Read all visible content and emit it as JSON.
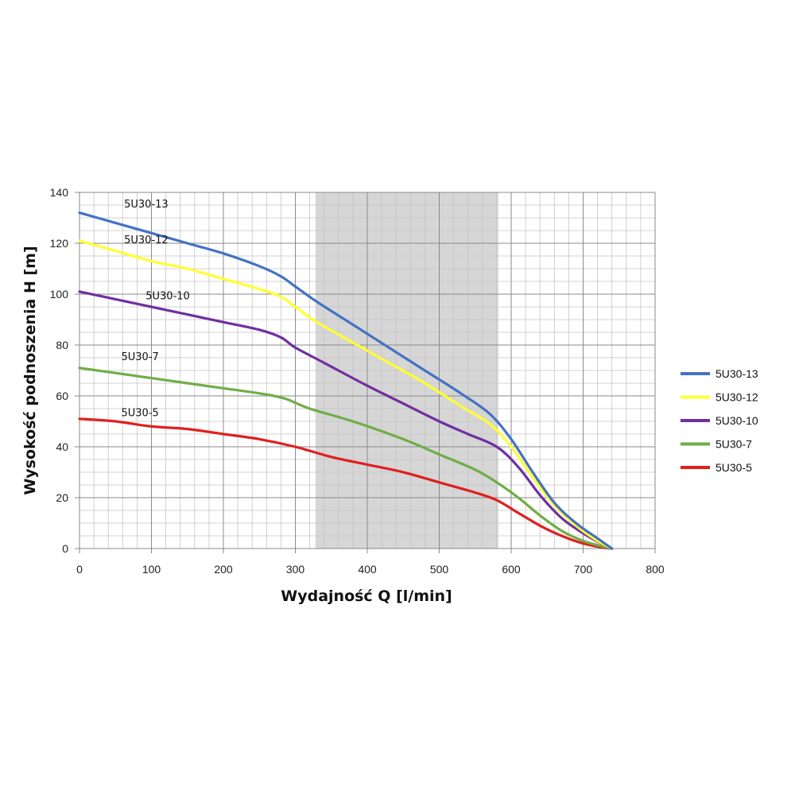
{
  "chart_data": {
    "type": "line",
    "xlabel": "Wydajność Q [l/min]",
    "ylabel": "Wysokość podnoszenia H [m]",
    "xlim": [
      0,
      800
    ],
    "ylim": [
      0,
      140
    ],
    "xticks": [
      0,
      100,
      200,
      300,
      400,
      500,
      600,
      700,
      800
    ],
    "yticks": [
      0,
      20,
      40,
      60,
      80,
      100,
      120,
      140
    ],
    "grid": true,
    "legend_position": "right",
    "highlight_band_x": [
      328,
      582
    ],
    "series": [
      {
        "name": "5U30-13",
        "color": "#4472C4",
        "x": [
          0,
          50,
          100,
          150,
          200,
          250,
          280,
          300,
          330,
          380,
          430,
          480,
          530,
          570,
          600,
          630,
          660,
          690,
          720,
          740
        ],
        "y": [
          132,
          128,
          124,
          120,
          116,
          111,
          107,
          103,
          97,
          88,
          79,
          70,
          61,
          53,
          43,
          30,
          18,
          10,
          4,
          0
        ]
      },
      {
        "name": "5U30-12",
        "color": "#FFFF33",
        "x": [
          0,
          50,
          100,
          150,
          200,
          250,
          280,
          300,
          330,
          380,
          430,
          480,
          530,
          570,
          600,
          630,
          660,
          690,
          720,
          740
        ],
        "y": [
          121,
          117,
          113,
          110,
          106,
          102,
          99,
          95,
          89,
          81,
          73,
          65,
          56,
          49,
          40,
          28,
          17,
          9,
          3,
          0
        ]
      },
      {
        "name": "5U30-10",
        "color": "#7030A0",
        "x": [
          0,
          50,
          100,
          150,
          200,
          250,
          280,
          300,
          340,
          400,
          450,
          500,
          540,
          580,
          610,
          640,
          670,
          700,
          725,
          740
        ],
        "y": [
          101,
          98,
          95,
          92,
          89,
          86,
          83,
          79,
          73,
          64,
          57,
          50,
          45,
          40,
          32,
          21,
          12,
          6,
          2,
          0
        ]
      },
      {
        "name": "5U30-7",
        "color": "#70AD47",
        "x": [
          0,
          50,
          100,
          150,
          200,
          250,
          285,
          320,
          380,
          450,
          500,
          550,
          580,
          610,
          640,
          670,
          700,
          725,
          740
        ],
        "y": [
          71,
          69,
          67,
          65,
          63,
          61,
          59,
          55,
          50,
          43,
          37,
          31,
          26,
          20,
          13,
          7,
          3,
          1,
          0
        ]
      },
      {
        "name": "5U30-5",
        "color": "#E02020",
        "x": [
          0,
          50,
          100,
          150,
          200,
          250,
          300,
          350,
          400,
          450,
          500,
          550,
          580,
          610,
          640,
          670,
          700,
          725,
          740
        ],
        "y": [
          51,
          50,
          48,
          47,
          45,
          43,
          40,
          36,
          33,
          30,
          26,
          22,
          19,
          14,
          9,
          5,
          2,
          0.5,
          0
        ]
      }
    ],
    "curve_labels": [
      {
        "text": "5U30-13",
        "x": 62,
        "y": 134
      },
      {
        "text": "5U30-12",
        "x": 62,
        "y": 120
      },
      {
        "text": "5U30-10",
        "x": 92,
        "y": 98
      },
      {
        "text": "5U30-7",
        "x": 58,
        "y": 74
      },
      {
        "text": "5U30-5",
        "x": 58,
        "y": 52
      }
    ]
  }
}
